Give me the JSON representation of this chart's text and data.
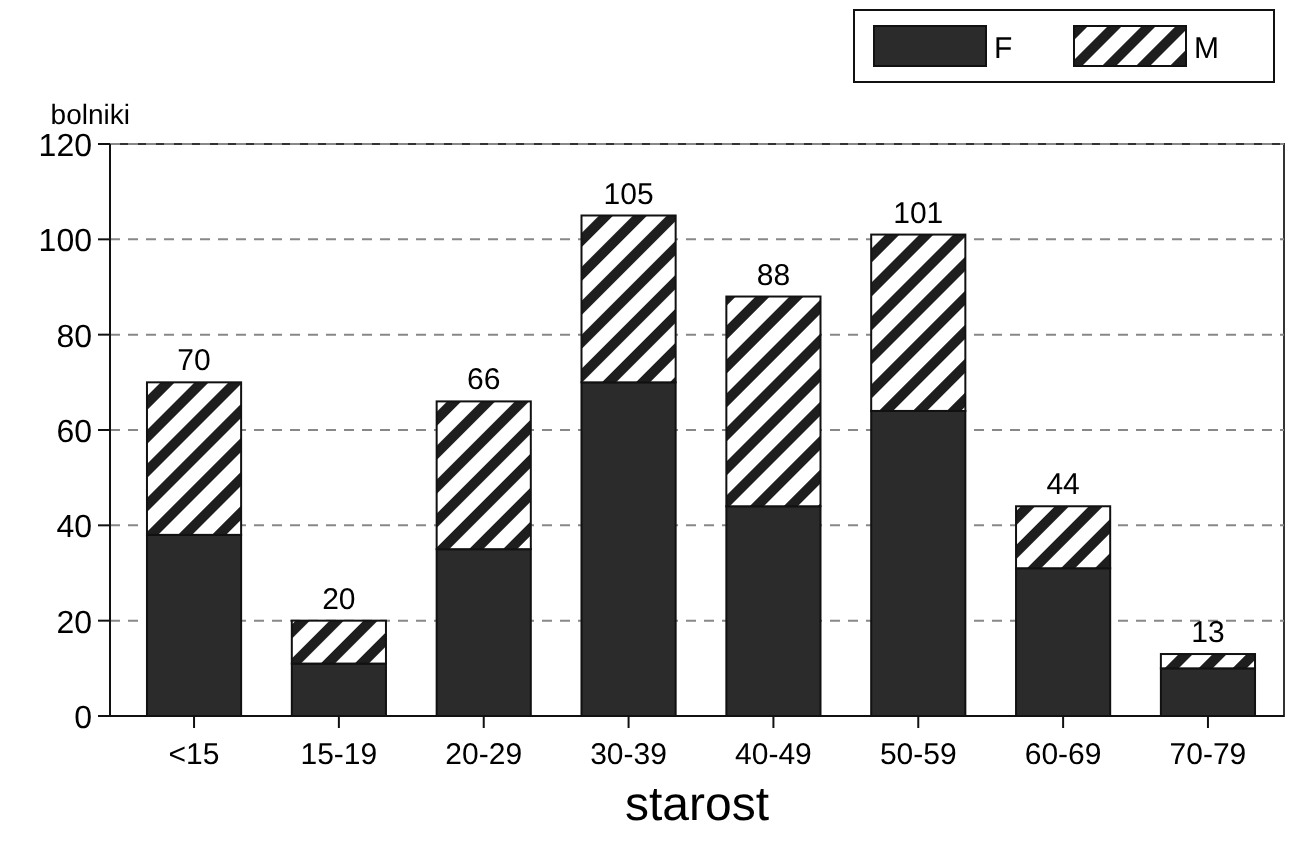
{
  "chart_data": {
    "type": "bar",
    "stacked": true,
    "xlabel": "starost",
    "ylabel": "bolniki",
    "categories": [
      "<15",
      "15-19",
      "20-29",
      "30-39",
      "40-49",
      "50-59",
      "60-69",
      "70-79"
    ],
    "series": [
      {
        "name": "F",
        "color": "#2b2b2b",
        "values": [
          38,
          11,
          35,
          70,
          44,
          64,
          31,
          10
        ]
      },
      {
        "name": "M",
        "color": "#1e1e1e",
        "values": [
          32,
          9,
          31,
          35,
          44,
          37,
          13,
          3
        ]
      }
    ],
    "totals": [
      "70",
      "20",
      "66",
      "105",
      "88",
      "101",
      "44",
      "13"
    ],
    "ylim": [
      0,
      120
    ],
    "yticks": [
      0,
      20,
      40,
      60,
      80,
      100,
      120
    ],
    "grid": "y",
    "legend": "top right"
  }
}
